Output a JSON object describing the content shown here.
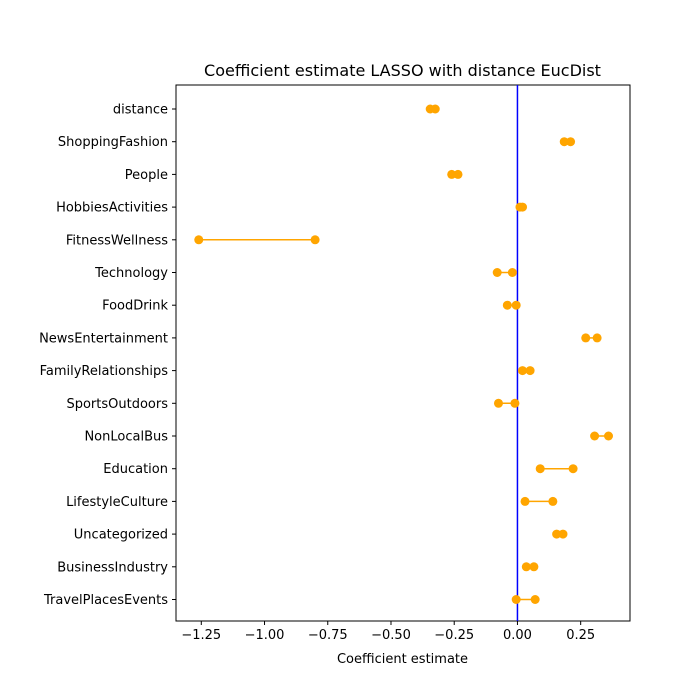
{
  "chart_data": {
    "type": "scatter",
    "title": "Coefficient estimate LASSO  with distance EucDist",
    "xlabel": "Coefficient estimate",
    "ylabel": "",
    "xlim": [
      -1.35,
      0.445
    ],
    "x_ticks": [
      -1.25,
      -1.0,
      -0.75,
      -0.5,
      -0.25,
      0.0,
      0.25
    ],
    "x_tick_labels": [
      "−1.25",
      "−1.00",
      "−0.75",
      "−0.50",
      "−0.25",
      "0.00",
      "0.25"
    ],
    "reference_line": {
      "x": 0.0,
      "color": "#0000ff"
    },
    "marker_color": "#ffa500",
    "categories": [
      "distance",
      "ShoppingFashion",
      "People",
      "HobbiesActivities",
      "FitnessWellness",
      "Technology",
      "FoodDrink",
      "NewsEntertainment",
      "FamilyRelationships",
      "SportsOutdoors",
      "NonLocalBus",
      "Education",
      "LifestyleCulture",
      "Uncategorized",
      "BusinessIndustry",
      "TravelPlacesEvents"
    ],
    "intervals": [
      [
        -0.345,
        -0.325
      ],
      [
        0.185,
        0.21
      ],
      [
        -0.26,
        -0.235
      ],
      [
        0.01,
        0.02
      ],
      [
        -1.26,
        -0.8
      ],
      [
        -0.08,
        -0.02
      ],
      [
        -0.04,
        -0.005
      ],
      [
        0.27,
        0.315
      ],
      [
        0.02,
        0.05
      ],
      [
        -0.075,
        -0.01
      ],
      [
        0.305,
        0.36
      ],
      [
        0.09,
        0.22
      ],
      [
        0.03,
        0.14
      ],
      [
        0.155,
        0.18
      ],
      [
        0.035,
        0.065
      ],
      [
        -0.005,
        0.07
      ]
    ]
  }
}
